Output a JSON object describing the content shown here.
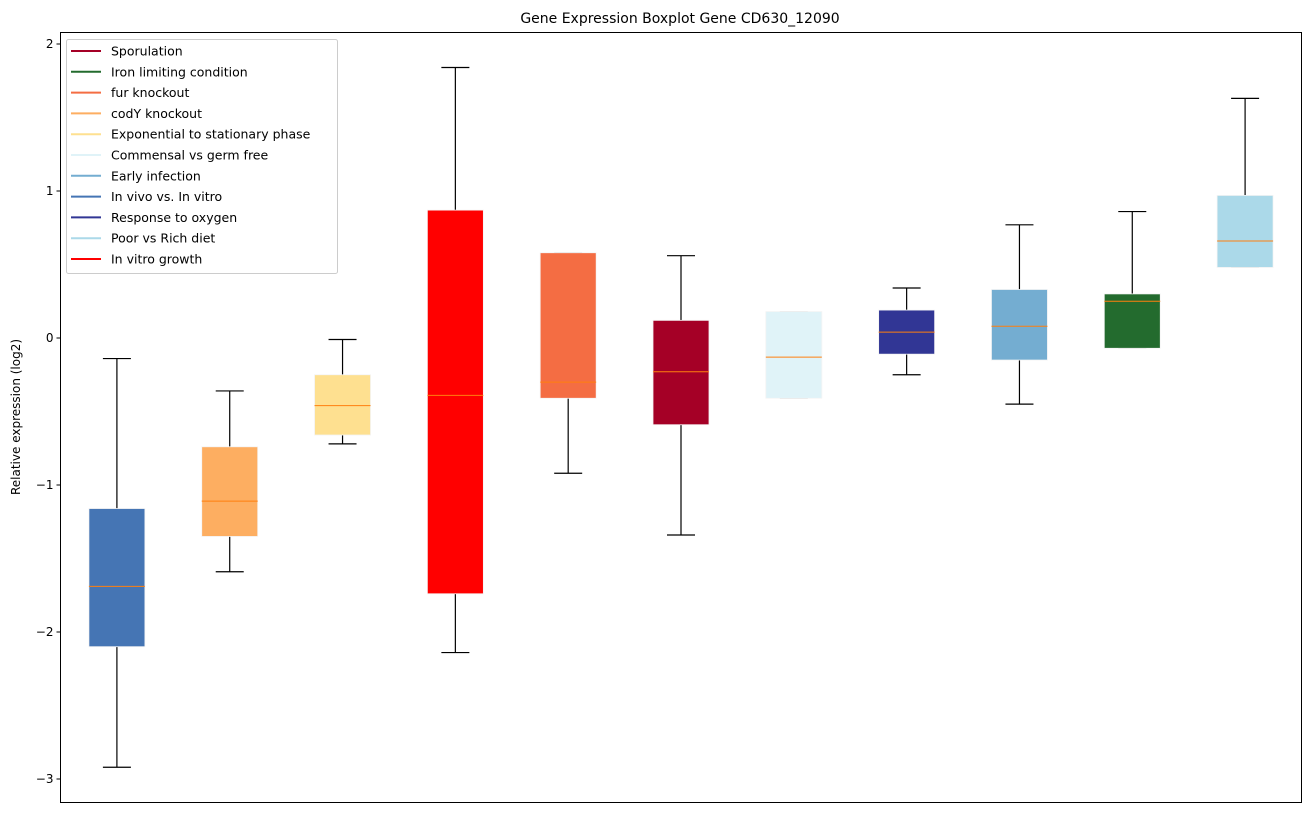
{
  "chart_data": {
    "type": "boxplot",
    "title": "Gene Expression Boxplot Gene CD630_12090",
    "xlabel": "",
    "ylabel": "Relative expression (log2)",
    "ylim": [
      -3.15,
      2.08
    ],
    "yticks": [
      2,
      1,
      0,
      -1,
      -2,
      -3
    ],
    "ytick_labels": [
      "2",
      "1",
      "0",
      "−1",
      "−2",
      "−3"
    ],
    "grid": false,
    "legend_placement": "top-left",
    "median_color": "#ff7f0e",
    "boxes": [
      {
        "name": "In vivo vs. In vitro",
        "color": "#4575b4",
        "whislo": -2.92,
        "q1": -2.1,
        "median": -1.69,
        "q3": -1.16,
        "whishi": -0.14
      },
      {
        "name": "codY knockout",
        "color": "#fdae61",
        "whislo": -1.59,
        "q1": -1.35,
        "median": -1.11,
        "q3": -0.74,
        "whishi": -0.36
      },
      {
        "name": "Exponential to stationary phase",
        "color": "#fee090",
        "whislo": -0.72,
        "q1": -0.66,
        "median": -0.46,
        "q3": -0.25,
        "whishi": -0.01
      },
      {
        "name": "In vitro growth",
        "color": "#ff0000",
        "whislo": -2.14,
        "q1": -1.74,
        "median": -0.39,
        "q3": 0.87,
        "whishi": 1.84
      },
      {
        "name": "fur knockout",
        "color": "#f46d43",
        "whislo": -0.92,
        "q1": -0.41,
        "median": -0.3,
        "q3": 0.58,
        "whishi": 0.58
      },
      {
        "name": "Sporulation",
        "color": "#a50026",
        "whislo": -1.34,
        "q1": -0.59,
        "median": -0.23,
        "q3": 0.12,
        "whishi": 0.56
      },
      {
        "name": "Commensal vs germ free",
        "color": "#e0f3f8",
        "whislo": -0.41,
        "q1": -0.41,
        "median": -0.13,
        "q3": 0.18,
        "whishi": 0.18
      },
      {
        "name": "Response to oxygen",
        "color": "#313695",
        "whislo": -0.25,
        "q1": -0.11,
        "median": 0.04,
        "q3": 0.19,
        "whishi": 0.34
      },
      {
        "name": "Early infection",
        "color": "#74add1",
        "whislo": -0.45,
        "q1": -0.15,
        "median": 0.08,
        "q3": 0.33,
        "whishi": 0.77
      },
      {
        "name": "Iron limiting condition",
        "color": "#236b2e",
        "whislo": -0.07,
        "q1": -0.07,
        "median": 0.25,
        "q3": 0.3,
        "whishi": 0.86
      },
      {
        "name": "Poor vs Rich diet",
        "color": "#abd9e9",
        "whislo": 0.48,
        "q1": 0.48,
        "median": 0.66,
        "q3": 0.97,
        "whishi": 1.63
      }
    ],
    "legend": [
      {
        "label": "Sporulation",
        "color": "#a50026"
      },
      {
        "label": "Iron limiting condition",
        "color": "#236b2e"
      },
      {
        "label": "fur knockout",
        "color": "#f46d43"
      },
      {
        "label": "codY knockout",
        "color": "#fdae61"
      },
      {
        "label": "Exponential to stationary phase",
        "color": "#fee090"
      },
      {
        "label": "Commensal vs germ free",
        "color": "#e0f3f8"
      },
      {
        "label": "Early infection",
        "color": "#74add1"
      },
      {
        "label": "In vivo vs. In vitro",
        "color": "#4575b4"
      },
      {
        "label": "Response to oxygen",
        "color": "#313695"
      },
      {
        "label": "Poor vs Rich diet",
        "color": "#abd9e9"
      },
      {
        "label": "In vitro growth",
        "color": "#ff0000"
      }
    ]
  }
}
